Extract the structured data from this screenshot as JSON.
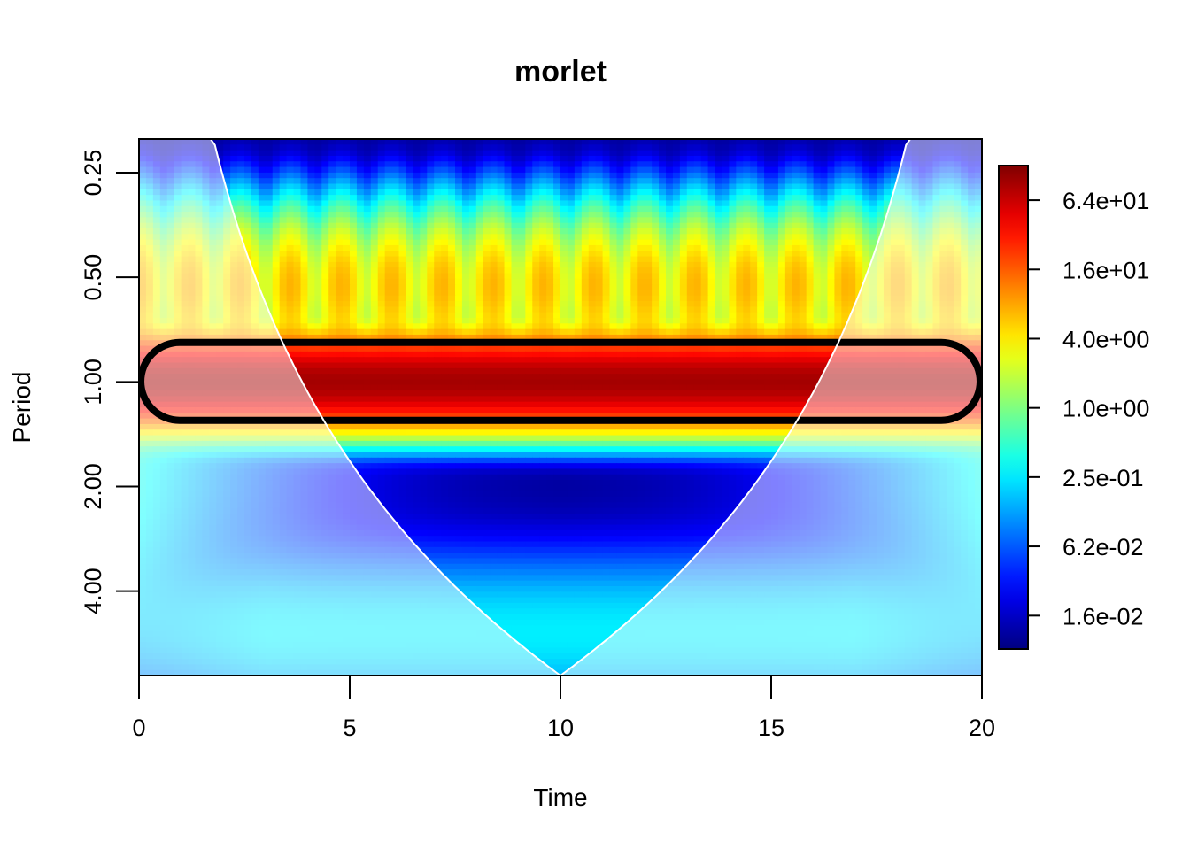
{
  "chart_data": {
    "type": "heatmap",
    "title": "morlet",
    "xlabel": "Time",
    "ylabel": "Period",
    "xlim": [
      0,
      20
    ],
    "x_ticks": [
      0,
      5,
      10,
      15,
      20
    ],
    "x_tick_labels": [
      "0",
      "5",
      "10",
      "15",
      "20"
    ],
    "y_scale": "log2",
    "ylim": [
      0.2,
      7.0
    ],
    "y_ticks": [
      0.25,
      0.5,
      1.0,
      2.0,
      4.0
    ],
    "y_tick_labels": [
      "0.25",
      "0.50",
      "1.00",
      "2.00",
      "4.00"
    ],
    "colorbar": {
      "scale": "log",
      "range": [
        0.008,
        128
      ],
      "ticks": [
        64,
        16,
        4,
        1,
        0.25,
        0.0625,
        0.0156
      ],
      "tick_labels": [
        "6.4e+01",
        "1.6e+01",
        "4.0e+00",
        "1.0e+00",
        "2.5e-01",
        "6.2e-02",
        "1.6e-02"
      ],
      "palette": [
        "#00007f",
        "#0000ff",
        "#007fff",
        "#00ffff",
        "#7fff7f",
        "#ffff00",
        "#ff7f00",
        "#ff0000",
        "#7f0000"
      ]
    },
    "signal_period": 1.0,
    "significance_contour": {
      "period_range": [
        0.77,
        1.29
      ],
      "color": "#000000"
    },
    "cone_of_influence": {
      "color": "#ffffff",
      "apex": [
        10,
        7.0
      ]
    },
    "grid": false,
    "legend": "right"
  }
}
